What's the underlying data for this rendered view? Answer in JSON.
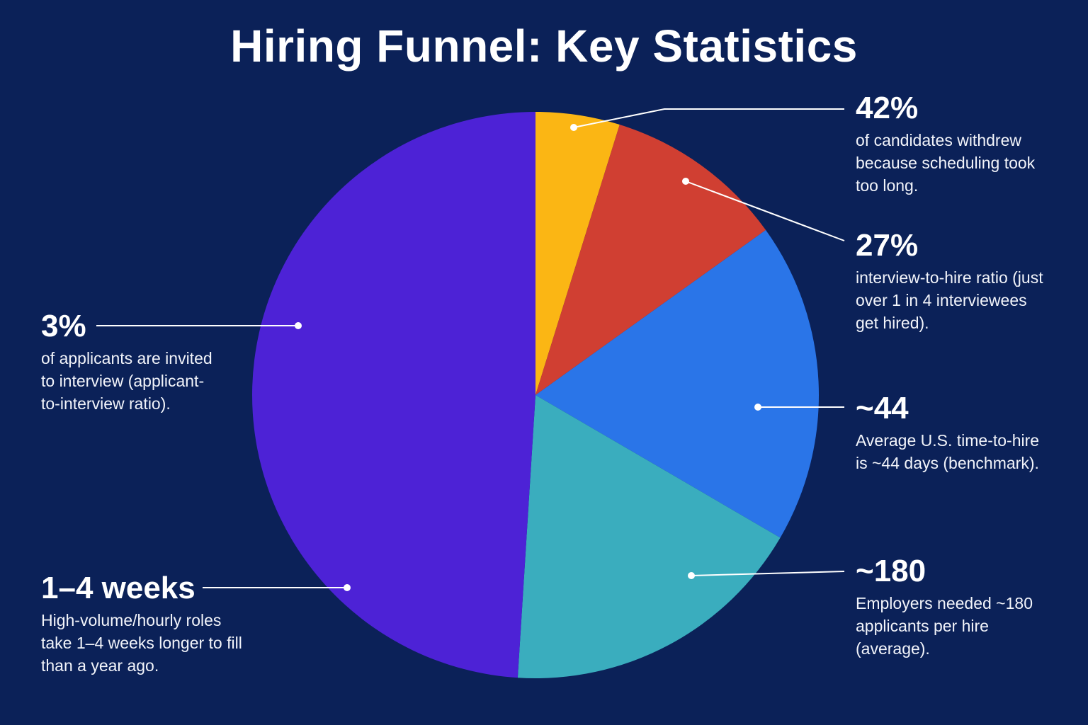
{
  "colors": {
    "background": "#0b2158",
    "leader": "#ffffff"
  },
  "title": "Hiring Funnel: Key Statistics",
  "chart_data": {
    "type": "pie",
    "title": "Hiring Funnel: Key Statistics",
    "slices": [
      {
        "stat": "42%",
        "description": "of candidates withdrew because scheduling took too long.",
        "approx_share": 0.048,
        "color": "#fbb614"
      },
      {
        "stat": "27%",
        "description": "interview-to-hire ratio (just over 1 in 4 interviewees get hired).",
        "approx_share": 0.103,
        "color": "#d03f32"
      },
      {
        "stat": "~44",
        "description": "Average U.S. time-to-hire is ~44 days (benchmark).",
        "approx_share": 0.183,
        "color": "#2a75e8"
      },
      {
        "stat": "~180",
        "description": "Employers needed ~180 applicants per hire (average).",
        "approx_share": 0.176,
        "color": "#3aadbe"
      },
      {
        "stat": "3%",
        "description": "of applicants are invited to interview (applicant-to-interview ratio).",
        "approx_share": 0.49,
        "color": "#4d22d6"
      }
    ],
    "extra_callouts": [
      {
        "stat": "1–4 weeks",
        "description": "High-volume/hourly roles take 1–4 weeks longer to fill than a year ago."
      }
    ]
  }
}
